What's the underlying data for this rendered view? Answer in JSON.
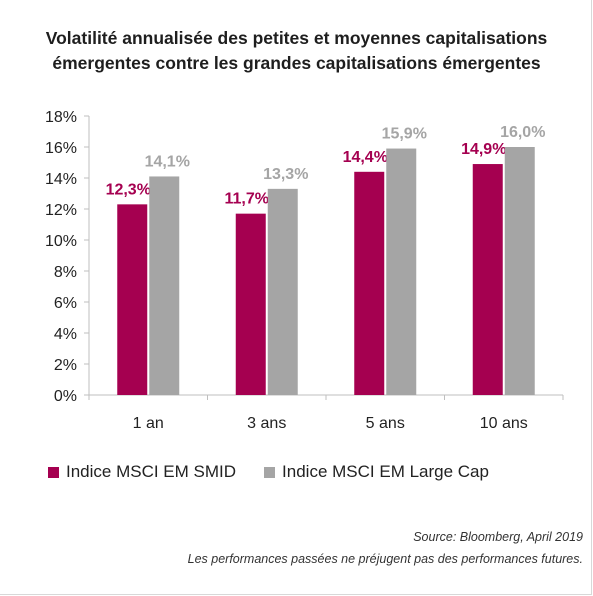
{
  "title_line1": "Volatilité annualisée des petites et moyennes capitalisations",
  "title_line2": "émergentes contre les grandes capitalisations émergentes",
  "colors": {
    "smid": "#a50050",
    "large": "#a5a5a5",
    "axis": "#bfbfbf",
    "label_smid": "#a50050",
    "label_large": "#a5a5a5"
  },
  "chart_data": {
    "type": "bar",
    "categories": [
      "1 an",
      "3 ans",
      "5 ans",
      "10 ans"
    ],
    "series": [
      {
        "name": "Indice MSCI EM SMID",
        "values": [
          12.3,
          11.7,
          14.4,
          14.9
        ],
        "labels": [
          "12,3%",
          "11,7%",
          "14,4%",
          "14,9%"
        ]
      },
      {
        "name": "Indice MSCI EM Large Cap",
        "values": [
          14.1,
          13.3,
          15.9,
          16.0
        ],
        "labels": [
          "14,1%",
          "13,3%",
          "15,9%",
          "16,0%"
        ]
      }
    ],
    "ylim": [
      0,
      18
    ],
    "yticks": [
      "0%",
      "2%",
      "4%",
      "6%",
      "8%",
      "10%",
      "12%",
      "14%",
      "16%",
      "18%"
    ],
    "grid": false,
    "legend": "bottom"
  },
  "legend": {
    "smid": "Indice MSCI EM SMID",
    "large": "Indice MSCI EM Large Cap"
  },
  "source": "Source: Bloomberg, April 2019",
  "disclaimer": "Les performances passées ne préjugent pas des performances futures."
}
